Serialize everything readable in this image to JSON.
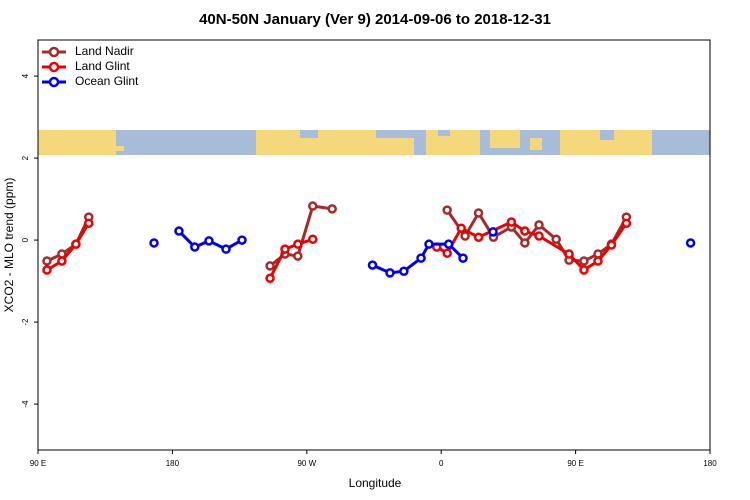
{
  "chart_data": {
    "type": "line",
    "title": "40N-50N January (Ver 9)   2014-09-06 to 2018-12-31",
    "xlabel": "Longitude",
    "ylabel": "XCO2 - MLO trend (ppm)",
    "xlim": [
      90,
      540
    ],
    "ylim": [
      -5.12,
      4.88
    ],
    "xticks": [
      {
        "value": 90,
        "label": "90 E"
      },
      180,
      {
        "value": 270,
        "label": "90 W"
      },
      {
        "value": 360,
        "label": "0"
      },
      {
        "value": 450,
        "label": "90 E"
      },
      {
        "value": 540,
        "label": "180"
      }
    ],
    "yticks": [
      -4,
      -2,
      0,
      2,
      4
    ],
    "legend": "top-left",
    "series": [
      {
        "name": "Land Nadir",
        "color": "#a52a2a",
        "x": [
          96,
          106,
          115.4,
          124,
          125,
          245.4,
          255.4,
          264,
          274,
          287,
          300,
          364,
          376,
          385,
          395,
          407,
          416,
          425.5,
          437,
          445.6,
          455.6,
          465,
          474,
          484
        ],
        "values": [
          -0.51,
          -0.34,
          -0.1,
          0.56,
          null,
          -0.63,
          -0.34,
          -0.39,
          0.83,
          0.76,
          null,
          0.73,
          0.1,
          0.66,
          0.07,
          0.32,
          -0.07,
          0.37,
          0.02,
          -0.49,
          -0.51,
          -0.34,
          -0.1,
          0.56
        ]
      },
      {
        "name": "Land Glint",
        "color": "#ee0000",
        "x": [
          96,
          106,
          115.4,
          124,
          125,
          245.4,
          255.4,
          264,
          274,
          300,
          357,
          364,
          373.4,
          385,
          407,
          416,
          425.5,
          445.6,
          455.6,
          465,
          474,
          484
        ],
        "values": [
          -0.73,
          -0.51,
          -0.1,
          0.41,
          null,
          -0.93,
          -0.22,
          -0.1,
          0.02,
          null,
          -0.17,
          -0.32,
          0.29,
          0.07,
          0.44,
          0.22,
          0.1,
          -0.34,
          -0.73,
          -0.51,
          -0.12,
          0.41
        ]
      },
      {
        "name": "Ocean Glint",
        "color": "#0000ee",
        "x": [
          167.7,
          175,
          184.4,
          195,
          204.5,
          215.9,
          226.6,
          300,
          314,
          325.7,
          335,
          346.5,
          351.8,
          365,
          374.6,
          385,
          394.7,
          450,
          527
        ],
        "values": [
          -0.07,
          null,
          0.22,
          -0.17,
          -0.02,
          -0.22,
          0.0,
          null,
          -0.61,
          -0.8,
          -0.76,
          -0.44,
          -0.1,
          -0.1,
          -0.44,
          null,
          0.2,
          null,
          -0.07
        ]
      }
    ]
  }
}
